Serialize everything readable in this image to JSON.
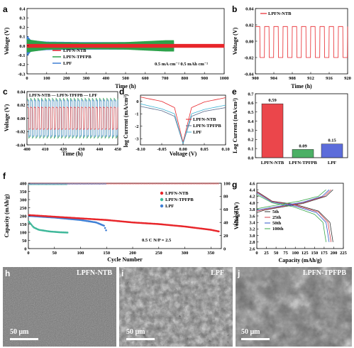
{
  "panels": {
    "a": {
      "letter": "a",
      "ylabel": "Voltage (V)",
      "xlabel": "Time (h)",
      "legend": [
        "LPFN-NTB",
        "LPFN-TPFPB",
        "LPF"
      ],
      "annotation": "0.5 mA cm⁻²  0.5 mAh cm⁻²",
      "xticks": [
        "0",
        "100",
        "200",
        "300",
        "400",
        "500",
        "600",
        "700",
        "800",
        "900",
        "1000"
      ],
      "yticks": [
        "-0.3",
        "-0.2",
        "-0.1",
        "0.0",
        "0.1",
        "0.2",
        "0.3",
        "0.4"
      ]
    },
    "b": {
      "letter": "b",
      "ylabel": "Voltage (V)",
      "xlabel": "Time (h)",
      "legend": [
        "LPFN-NTB"
      ],
      "xticks": [
        "900",
        "904",
        "908",
        "912",
        "916",
        "920"
      ],
      "yticks": [
        "-0.04",
        "-0.02",
        "0.00",
        "0.02",
        "0.04"
      ]
    },
    "c": {
      "letter": "c",
      "ylabel": "Voltage (V)",
      "xlabel": "Time (h)",
      "legend_text": "LPFN-NTB — LPFN-TPFPB — LPF",
      "xticks": [
        "400",
        "410",
        "420",
        "430",
        "440",
        "450"
      ],
      "yticks": [
        "-0.04",
        "-0.02",
        "0.00",
        "0.02",
        "0.04"
      ]
    },
    "d": {
      "letter": "d",
      "ylabel": "log Current (mA/cm²)",
      "xlabel": "Voltage (V)",
      "legend": [
        "LPFN-NTB",
        "LPFN-TPFPB",
        "LPF"
      ],
      "xticks": [
        "-0.10",
        "-0.05",
        "0.00",
        "0.05",
        "0.10"
      ],
      "yticks": [
        "-3",
        "-2",
        "-1",
        "0"
      ]
    },
    "e": {
      "letter": "e",
      "ylabel": "Log Current (mA/cm²)",
      "yticks": [
        "0.0",
        "0.1",
        "0.2",
        "0.3",
        "0.4",
        "0.5",
        "0.6",
        "0.7"
      ]
    },
    "f": {
      "letter": "f",
      "ylabel": "Capacity (mAh/g)",
      "ylabel2": "CE (%)",
      "xlabel": "Cycle Number",
      "legend": [
        "LPFN-NTB",
        "LPFN-TPFPB",
        "LPF"
      ],
      "annotation": "0.5 C   N/P = 2.5",
      "xticks": [
        "0",
        "50",
        "100",
        "150",
        "200",
        "250",
        "300",
        "350"
      ],
      "yticks": [
        "0",
        "50",
        "100",
        "150",
        "200",
        "250",
        "300",
        "350",
        "400"
      ],
      "y2ticks": [
        "0",
        "20",
        "40",
        "60",
        "80",
        "100"
      ]
    },
    "g": {
      "letter": "g",
      "ylabel": "Voltage (V)",
      "xlabel": "Capacity (mAh/g)",
      "legend": [
        "5th",
        "25th",
        "50th",
        "100th"
      ],
      "xticks": [
        "0",
        "25",
        "50",
        "75",
        "100",
        "125",
        "150",
        "175",
        "200",
        "225"
      ],
      "yticks": [
        "2.6",
        "2.8",
        "3.0",
        "3.2",
        "3.4",
        "3.6",
        "3.8",
        "4.0",
        "4.2",
        "4.4",
        "4.6"
      ]
    },
    "h": {
      "letter": "h",
      "label": "LPFN-NTB",
      "scale": "50 μm"
    },
    "i": {
      "letter": "i",
      "label": "LPF",
      "scale": "50 μm"
    },
    "j": {
      "letter": "j",
      "label": "LPFN-TPFPB",
      "scale": "50 μm"
    }
  },
  "colors": {
    "ntb": "#e8262b",
    "tpfpb": "#2ca24a",
    "lpf": "#3f7fd4",
    "c5": "#333333",
    "c25": "#d6404c",
    "c50": "#2f57c7",
    "c100": "#3aa84a"
  },
  "chart_data": [
    {
      "panel": "a",
      "type": "line",
      "xlabel": "Time (h)",
      "ylabel": "Voltage (V)",
      "xlim": [
        0,
        1000
      ],
      "ylim": [
        -0.3,
        0.4
      ],
      "series": [
        {
          "name": "LPFN-NTB",
          "x": [
            0,
            100,
            300,
            500,
            700,
            1000
          ],
          "amplitude": [
            0.02,
            0.02,
            0.02,
            0.02,
            0.02,
            0.02
          ]
        },
        {
          "name": "LPFN-TPFPB",
          "x": [
            0,
            100,
            300,
            500,
            600,
            700,
            745
          ],
          "amplitude": [
            0.07,
            0.04,
            0.035,
            0.04,
            0.05,
            0.06,
            0.06
          ]
        },
        {
          "name": "LPF",
          "x": [
            0,
            20,
            100,
            300,
            500,
            700,
            745
          ],
          "amplitude": [
            0.11,
            0.06,
            0.045,
            0.04,
            0.04,
            0.045,
            0.05
          ]
        }
      ]
    },
    {
      "panel": "b",
      "type": "line",
      "xlabel": "Time (h)",
      "ylabel": "Voltage (V)",
      "xlim": [
        900,
        920
      ],
      "ylim": [
        -0.04,
        0.04
      ],
      "series": [
        {
          "name": "LPFN-NTB",
          "period_h": 2,
          "upper": 0.018,
          "lower": -0.02
        }
      ]
    },
    {
      "panel": "c",
      "type": "line",
      "xlabel": "Time (h)",
      "ylabel": "Voltage (V)",
      "xlim": [
        400,
        450
      ],
      "ylim": [
        -0.04,
        0.04
      ],
      "series": [
        {
          "name": "LPFN-NTB",
          "amplitude": 0.017
        },
        {
          "name": "LPFN-TPFPB",
          "amplitude": 0.03
        },
        {
          "name": "LPF",
          "amplitude": 0.028
        }
      ]
    },
    {
      "panel": "d",
      "type": "line",
      "xlabel": "Voltage (V)",
      "ylabel": "log Current (mA/cm²)",
      "xlim": [
        -0.1,
        0.1
      ],
      "ylim": [
        -3.5,
        0.5
      ],
      "series": [
        {
          "name": "LPFN-NTB",
          "x": [
            -0.1,
            -0.05,
            -0.02,
            0,
            0.02,
            0.05,
            0.1
          ],
          "values": [
            0.35,
            0.0,
            -0.5,
            -3.3,
            -0.5,
            -0.05,
            0.3
          ]
        },
        {
          "name": "LPFN-TPFPB",
          "x": [
            -0.1,
            -0.05,
            -0.02,
            0,
            0.02,
            0.05,
            0.1
          ],
          "values": [
            -0.4,
            -0.75,
            -1.2,
            -3.4,
            -1.2,
            -0.8,
            -0.5
          ]
        },
        {
          "name": "LPF",
          "x": [
            -0.1,
            -0.05,
            -0.02,
            0,
            0.02,
            0.05,
            0.1
          ],
          "values": [
            -0.2,
            -0.6,
            -1.0,
            -3.4,
            -1.0,
            -0.65,
            -0.3
          ]
        }
      ]
    },
    {
      "panel": "e",
      "type": "bar",
      "ylabel": "Log Current (mA/cm²)",
      "ylim": [
        0,
        0.7
      ],
      "categories": [
        "LPFN-NTB",
        "LPFN-TPFPB",
        "LPF"
      ],
      "values": [
        0.59,
        0.09,
        0.15
      ],
      "labels": [
        "0.59",
        "0.09",
        "0.15"
      ]
    },
    {
      "panel": "f",
      "type": "scatter",
      "xlabel": "Cycle Number",
      "ylabel": "Capacity (mAh/g)",
      "ylabel2": "CE (%)",
      "xlim": [
        0,
        370
      ],
      "ylim": [
        0,
        400
      ],
      "y2lim": [
        0,
        100
      ],
      "series": [
        {
          "name": "LPFN-NTB",
          "x": [
            1,
            50,
            100,
            150,
            200,
            250,
            300,
            350,
            365
          ],
          "values": [
            205,
            195,
            185,
            175,
            160,
            150,
            135,
            115,
            105
          ]
        },
        {
          "name": "LPFN-TPFPB",
          "x": [
            1,
            10,
            20,
            40,
            60,
            75
          ],
          "values": [
            165,
            130,
            115,
            105,
            100,
            98
          ]
        },
        {
          "name": "LPF",
          "x": [
            1,
            50,
            100,
            130,
            145,
            150
          ],
          "values": [
            200,
            190,
            175,
            160,
            140,
            105
          ]
        }
      ],
      "ce": [
        {
          "name": "LPFN-NTB",
          "value": 99.5
        },
        {
          "name": "LPFN-TPFPB",
          "value": 98
        },
        {
          "name": "LPF",
          "value": 99
        }
      ]
    },
    {
      "panel": "g",
      "type": "line",
      "xlabel": "Capacity (mAh/g)",
      "ylabel": "Voltage (V)",
      "xlim": [
        0,
        225
      ],
      "ylim": [
        2.6,
        4.6
      ],
      "series": [
        {
          "name": "5th",
          "charge": [
            [
              0,
              3.7
            ],
            [
              20,
              3.78
            ],
            [
              60,
              3.86
            ],
            [
              120,
              3.98
            ],
            [
              180,
              4.2
            ],
            [
              198,
              4.4
            ]
          ],
          "discharge": [
            [
              0,
              4.35
            ],
            [
              40,
              4.05
            ],
            [
              100,
              3.95
            ],
            [
              160,
              3.75
            ],
            [
              190,
              3.4
            ],
            [
              198,
              2.8
            ]
          ]
        },
        {
          "name": "25th",
          "charge": [
            [
              0,
              3.75
            ],
            [
              60,
              3.88
            ],
            [
              120,
              4.0
            ],
            [
              175,
              4.2
            ],
            [
              193,
              4.4
            ]
          ],
          "discharge": [
            [
              0,
              4.33
            ],
            [
              40,
              4.04
            ],
            [
              100,
              3.93
            ],
            [
              160,
              3.72
            ],
            [
              185,
              3.4
            ],
            [
              193,
              2.8
            ]
          ]
        },
        {
          "name": "50th",
          "charge": [
            [
              0,
              3.78
            ],
            [
              60,
              3.9
            ],
            [
              120,
              4.02
            ],
            [
              170,
              4.2
            ],
            [
              188,
              4.4
            ]
          ],
          "discharge": [
            [
              0,
              4.3
            ],
            [
              40,
              4.02
            ],
            [
              100,
              3.9
            ],
            [
              155,
              3.7
            ],
            [
              180,
              3.4
            ],
            [
              188,
              2.8
            ]
          ]
        },
        {
          "name": "100th",
          "charge": [
            [
              0,
              3.82
            ],
            [
              60,
              3.95
            ],
            [
              110,
              4.05
            ],
            [
              160,
              4.2
            ],
            [
              180,
              4.4
            ]
          ],
          "discharge": [
            [
              0,
              4.25
            ],
            [
              40,
              4.0
            ],
            [
              95,
              3.88
            ],
            [
              150,
              3.65
            ],
            [
              172,
              3.4
            ],
            [
              180,
              2.8
            ]
          ]
        }
      ]
    }
  ]
}
